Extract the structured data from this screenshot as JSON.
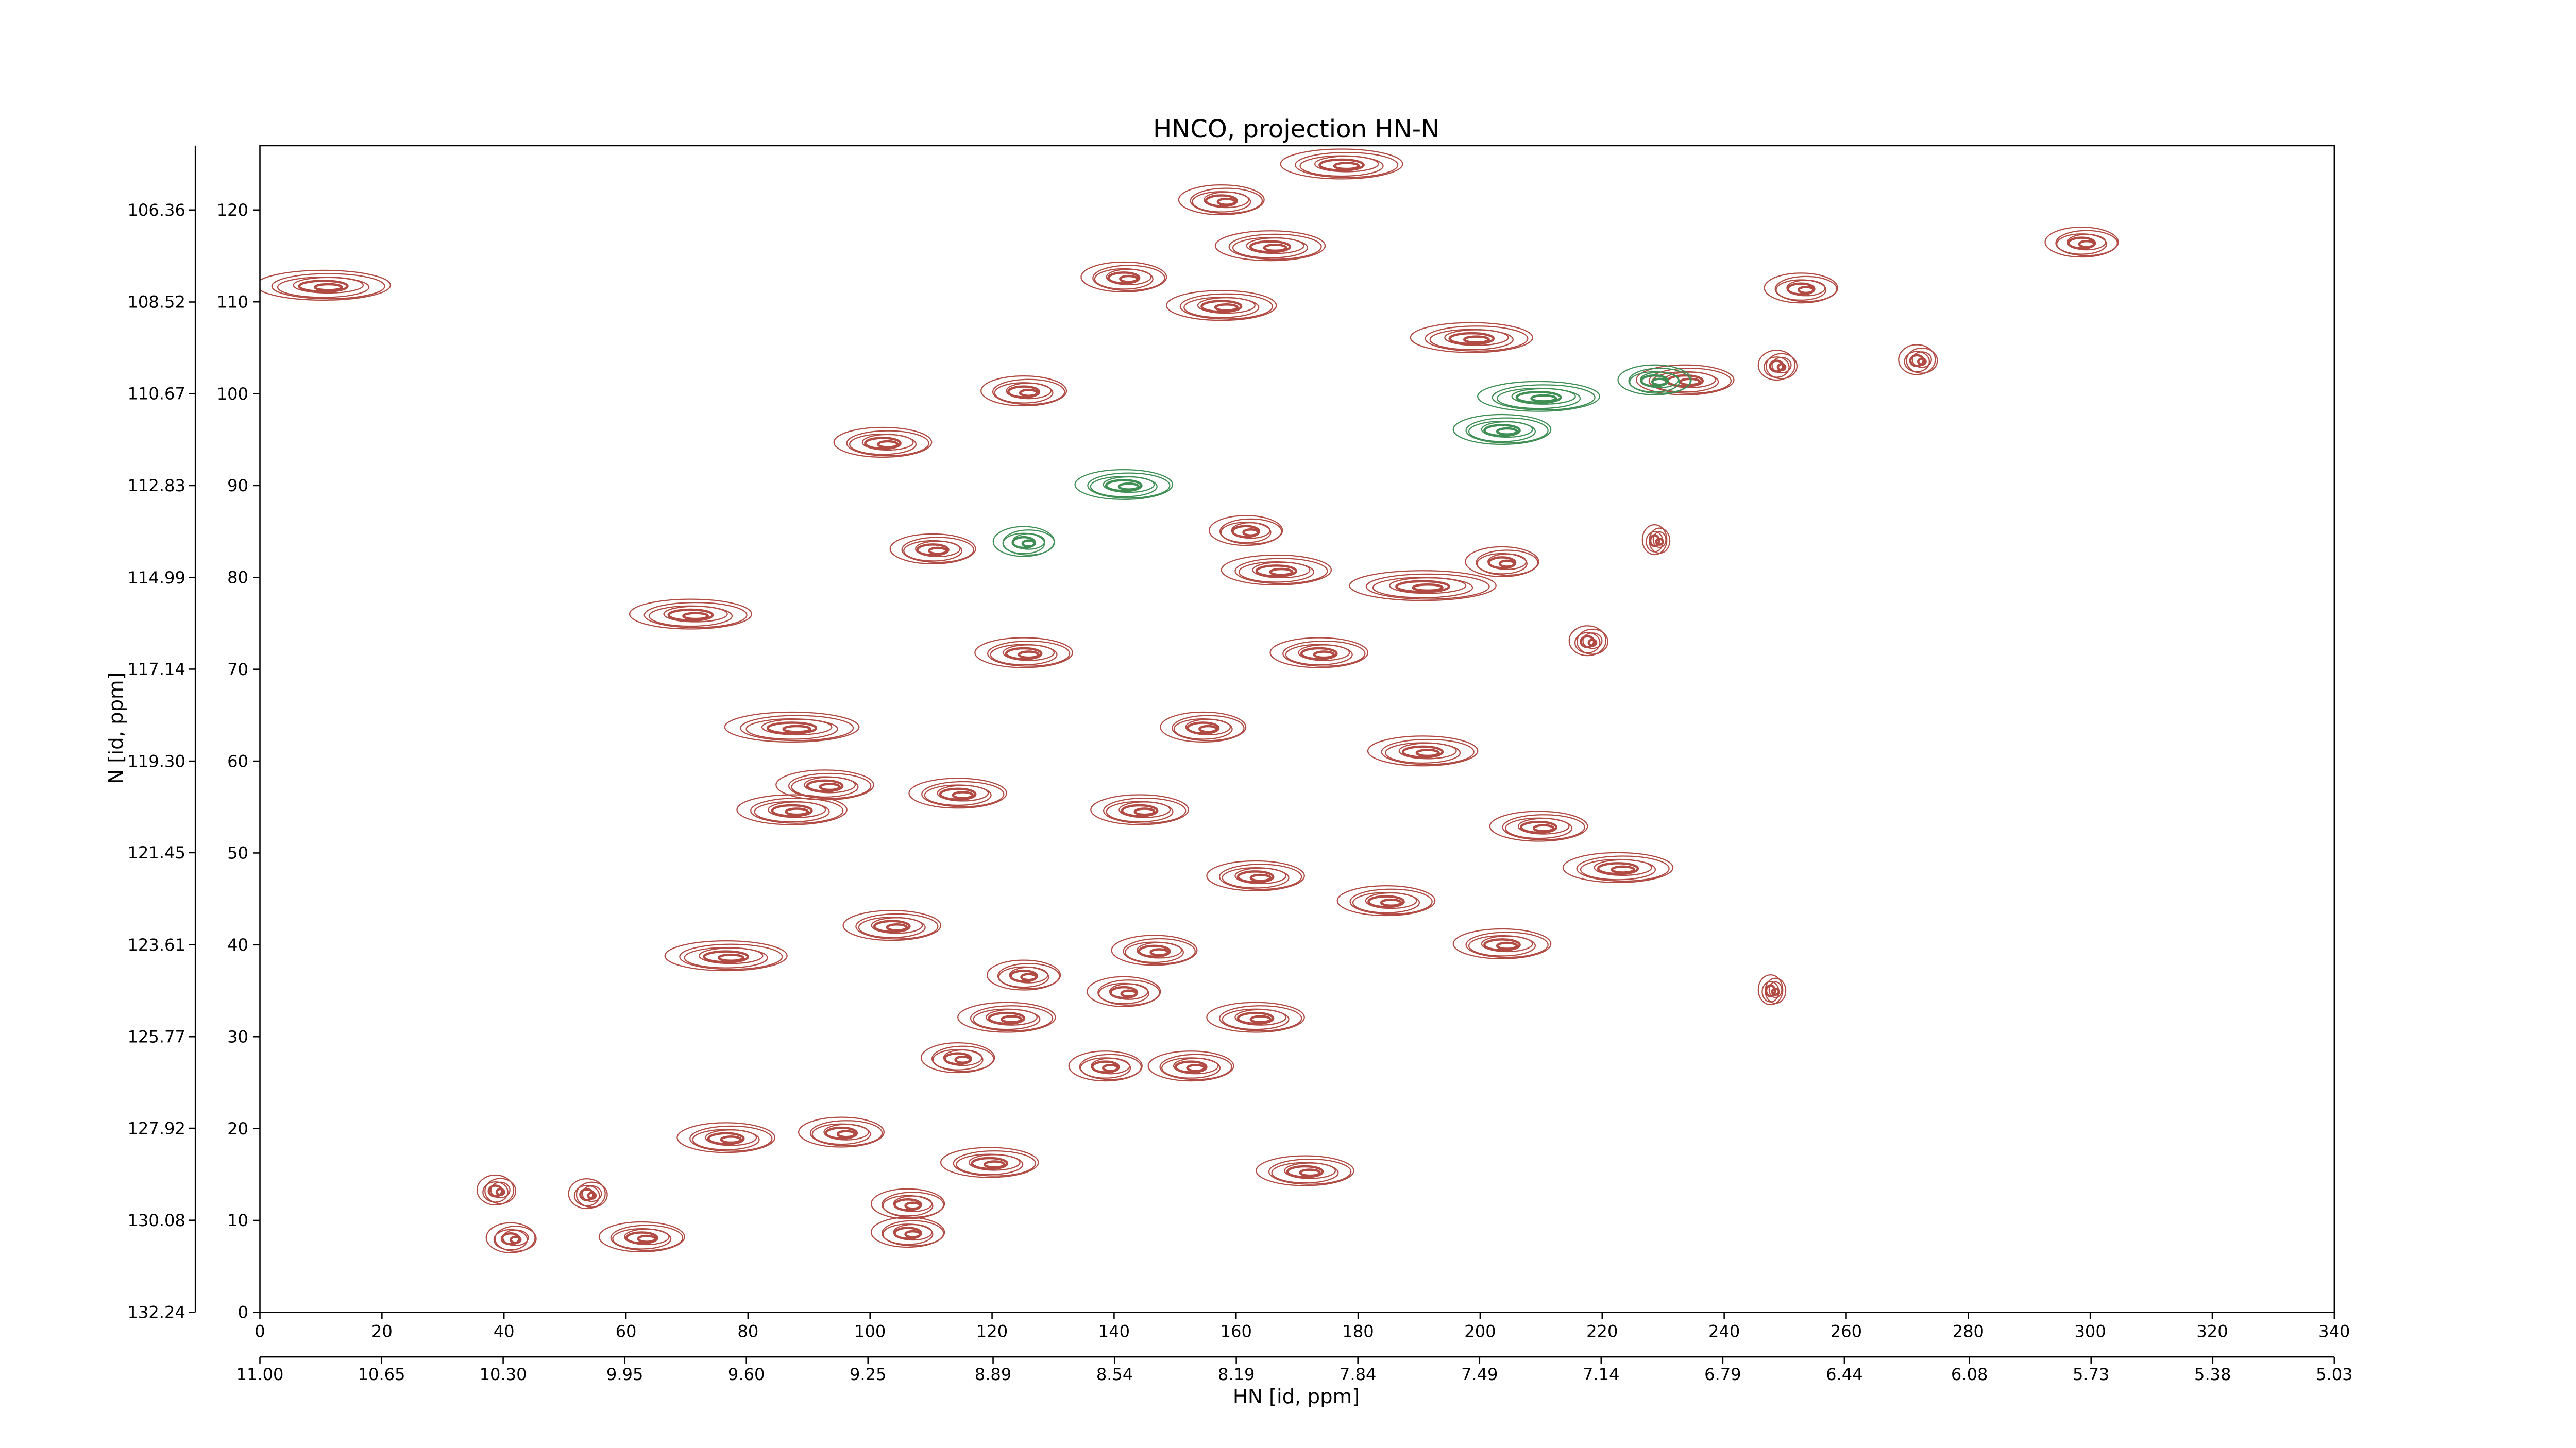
{
  "chart_data": {
    "type": "contour",
    "title": "HNCO, projection HN-N",
    "xlabel": "HN [id, ppm]",
    "ylabel": "N [id, ppm]",
    "xlim": [
      0,
      340
    ],
    "xticks": [
      0,
      20,
      40,
      60,
      80,
      100,
      120,
      140,
      160,
      180,
      200,
      220,
      240,
      260,
      280,
      300,
      320,
      340
    ],
    "ylim": [
      0,
      127
    ],
    "yticks": [
      0,
      10,
      20,
      30,
      40,
      50,
      60,
      70,
      80,
      90,
      100,
      110,
      120
    ],
    "x2lim": [
      11.0,
      5.03
    ],
    "x2ticks": [
      {
        "value": 11,
        "label": "11.00"
      },
      10.65,
      {
        "value": 10.3,
        "label": "10.30"
      },
      9.95,
      {
        "value": 9.6,
        "label": "9.60"
      },
      9.25,
      8.89,
      8.54,
      8.19,
      7.84,
      7.49,
      7.14,
      6.79,
      6.44,
      6.08,
      5.73,
      5.38,
      5.03
    ],
    "y2lim": [
      132.24,
      104.85
    ],
    "y2ticks": [
      132.24,
      130.08,
      127.92,
      125.77,
      123.61,
      121.45,
      {
        "value": 119.3,
        "label": "119.30"
      },
      117.14,
      114.99,
      112.83,
      110.67,
      108.52,
      106.36
    ],
    "series": [
      {
        "color": "#b04a42",
        "x": [
          10.8,
          71,
          102.5,
          125.6,
          110.7,
          177.7,
          158,
          166,
          142,
          158,
          199,
          299,
          253,
          234,
          249,
          272,
          162,
          167,
          191,
          204,
          174,
          125.6,
          87.6,
          191,
          155,
          93,
          114.8,
          87.6,
          144.6,
          210,
          223,
          163.6,
          185,
          104,
          76.8,
          125.6,
          147,
          204,
          122.8,
          142,
          163.6,
          114.8,
          139,
          153,
          76.8,
          95.7,
          120,
          171.7,
          106.6,
          106.6,
          63,
          39,
          54,
          41.5,
          218,
          229,
          248
        ],
        "y": [
          111.7,
          75.9,
          94.6,
          100.2,
          83,
          124.9,
          121,
          116,
          112.6,
          109.5,
          106,
          116.4,
          111.4,
          101.4,
          103,
          103.6,
          85,
          80.7,
          79,
          81.6,
          71.7,
          71.7,
          63.6,
          61,
          63.6,
          57.3,
          56.4,
          54.6,
          54.6,
          52.8,
          48.3,
          47.4,
          44.7,
          42,
          38.7,
          36.6,
          39.3,
          40,
          32,
          34.8,
          32,
          27.6,
          26.7,
          26.7,
          18.9,
          19.5,
          16.2,
          15.3,
          11.7,
          8.6,
          8.1,
          13.2,
          12.8,
          8,
          73,
          84,
          35
        ],
        "xwidth": [
          11,
          10,
          8,
          7,
          7,
          10,
          7,
          9,
          7,
          9,
          10,
          6,
          6,
          8,
          3,
          3,
          6,
          9,
          12,
          6,
          8,
          8,
          11,
          9,
          7,
          8,
          8,
          9,
          8,
          8,
          9,
          8,
          8,
          8,
          10,
          6,
          7,
          8,
          8,
          6,
          8,
          6,
          6,
          7,
          8,
          7,
          8,
          8,
          6,
          6,
          7,
          3,
          3,
          4,
          3,
          2,
          2
        ]
      },
      {
        "color": "#3f8f55",
        "x": [
          142,
          125.6,
          204,
          210,
          229
        ],
        "y": [
          90,
          83.8,
          96,
          99.6,
          101.4
        ],
        "xwidth": [
          8,
          5,
          8,
          10,
          6
        ]
      }
    ]
  }
}
